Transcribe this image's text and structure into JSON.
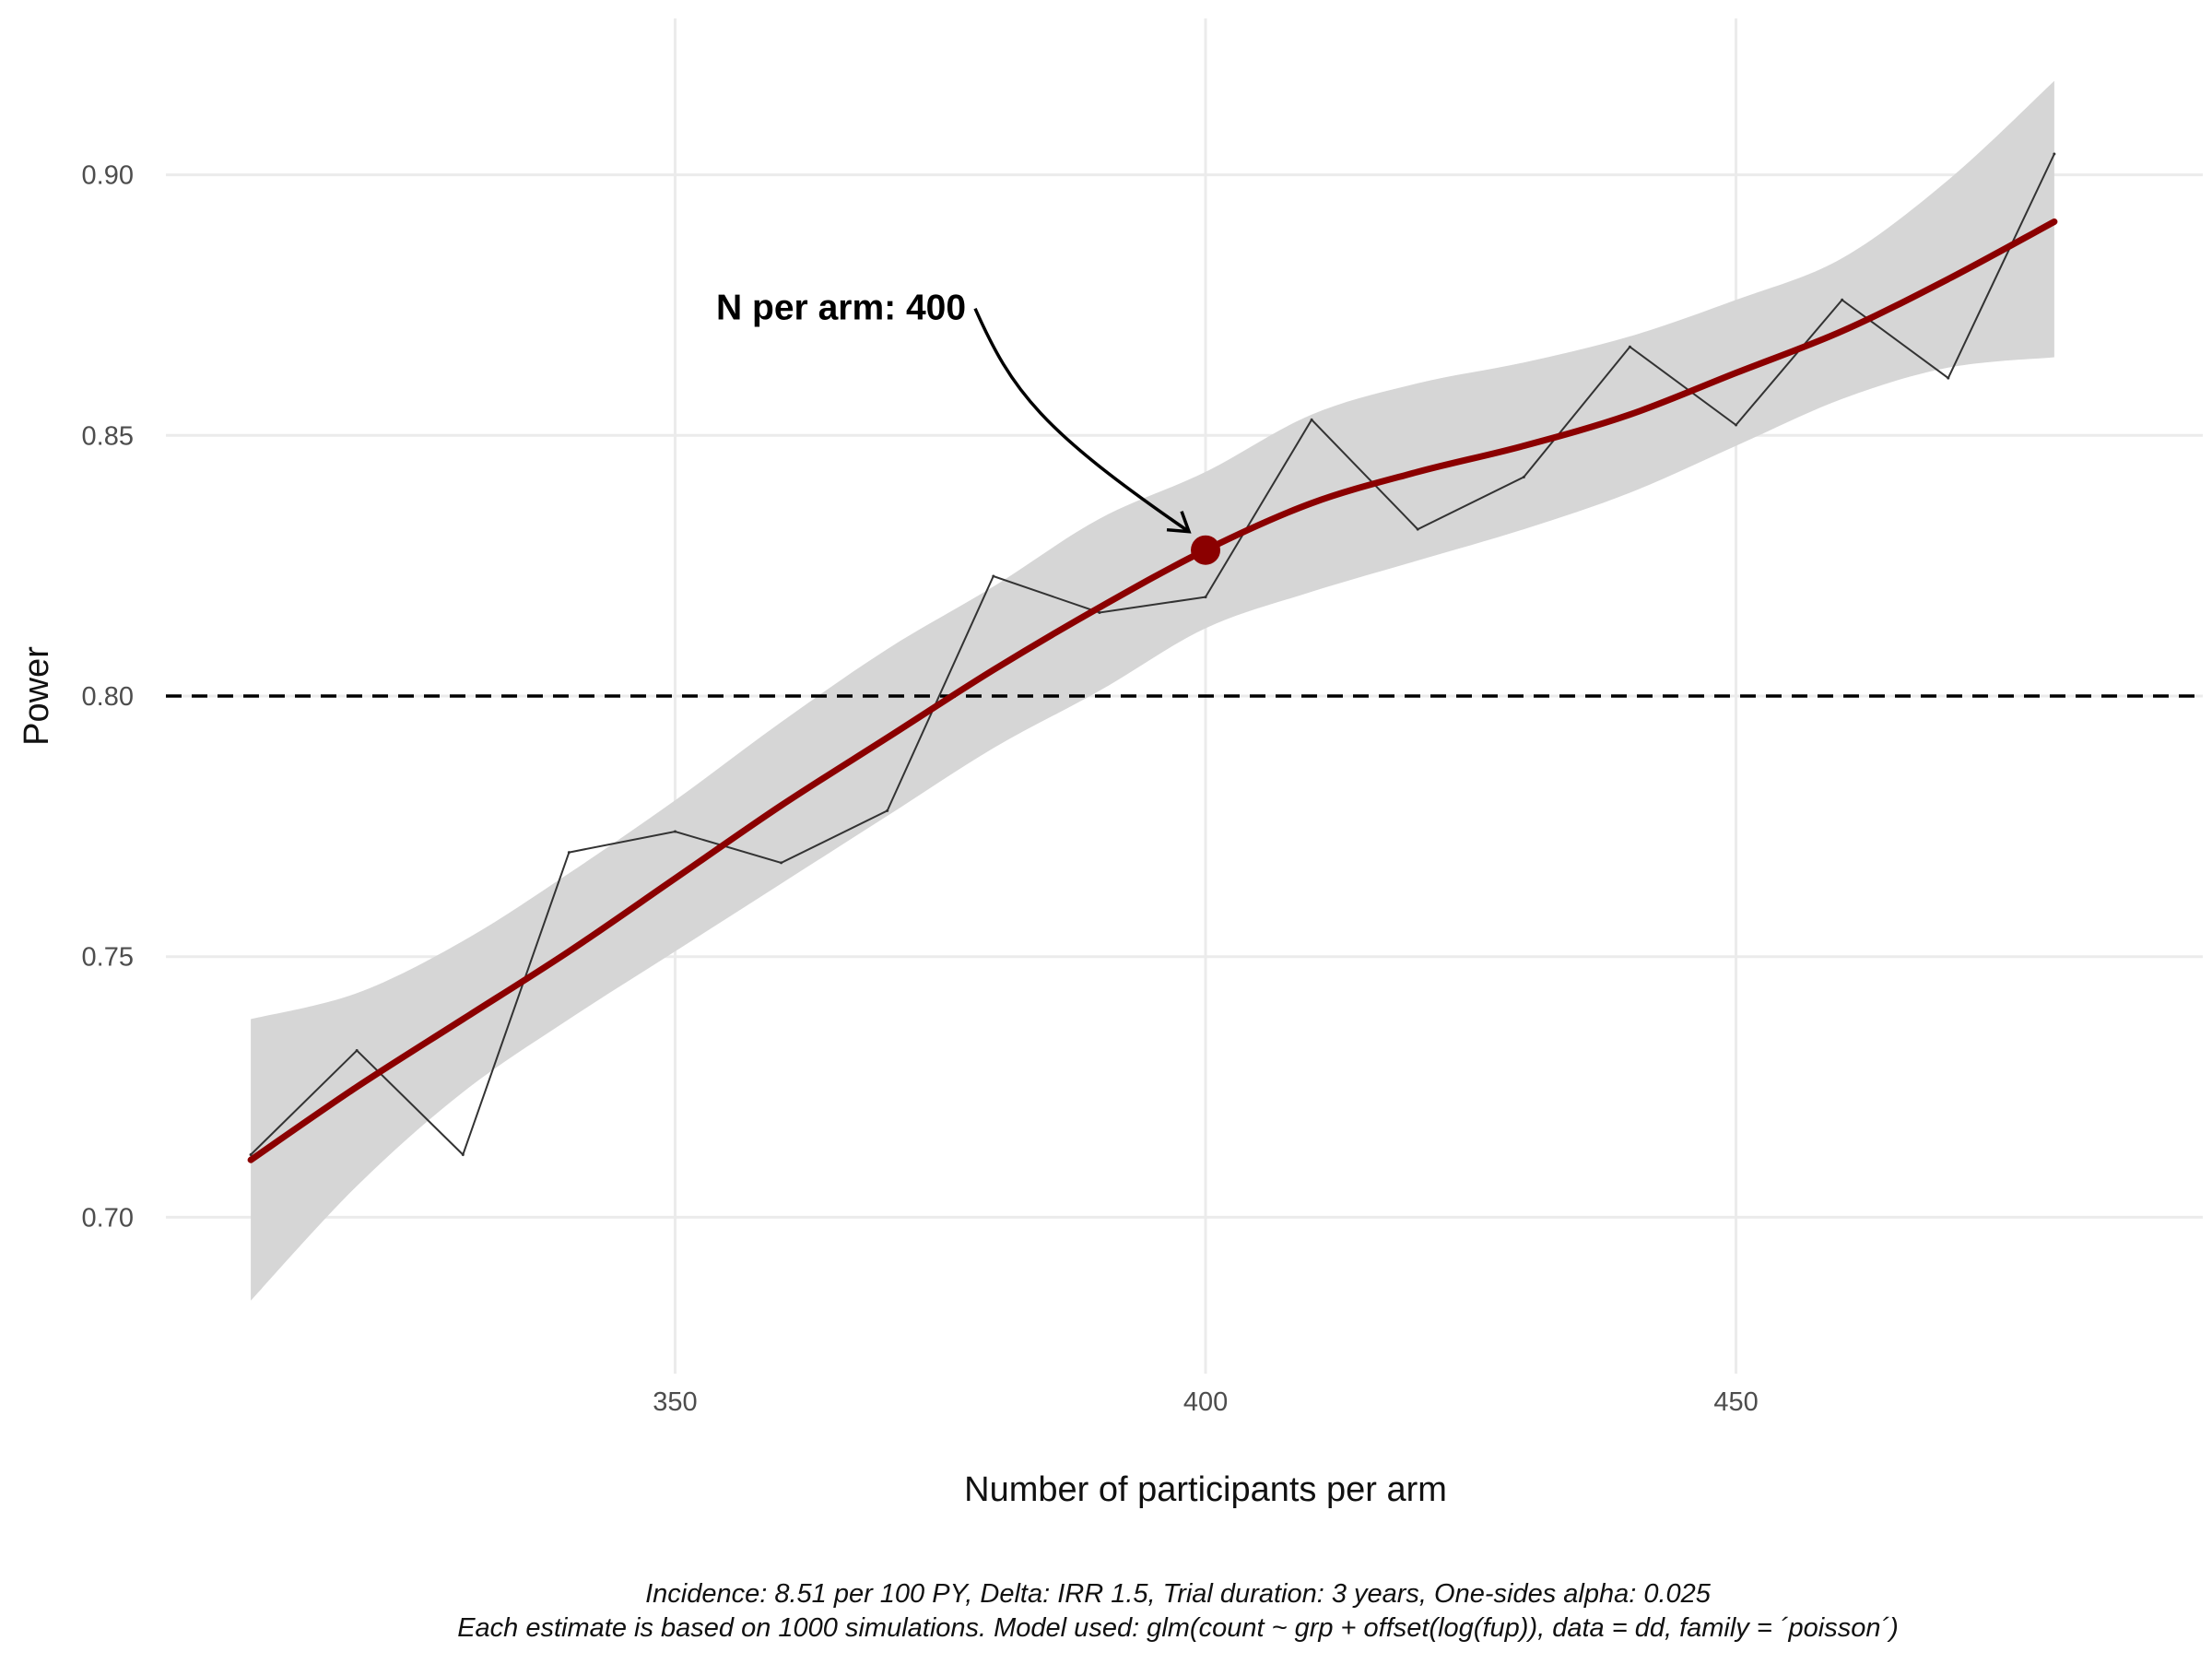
{
  "chart_data": {
    "type": "line",
    "x": [
      310,
      320,
      330,
      340,
      350,
      360,
      370,
      380,
      390,
      400,
      410,
      420,
      430,
      440,
      450,
      460,
      470,
      480
    ],
    "series": [
      {
        "kind": "observed",
        "values": [
          0.712,
          0.732,
          0.712,
          0.77,
          0.774,
          0.768,
          0.778,
          0.823,
          0.816,
          0.819,
          0.853,
          0.832,
          0.842,
          0.867,
          0.852,
          0.876,
          0.861,
          0.904
        ]
      },
      {
        "kind": "smooth",
        "values": [
          0.711,
          0.725,
          0.738,
          0.751,
          0.765,
          0.779,
          0.792,
          0.805,
          0.817,
          0.828,
          0.837,
          0.843,
          0.848,
          0.854,
          0.862,
          0.87,
          0.88,
          0.891
        ],
        "ci_lower": [
          0.684,
          0.706,
          0.724,
          0.738,
          0.751,
          0.764,
          0.777,
          0.79,
          0.801,
          0.813,
          0.82,
          0.826,
          0.832,
          0.839,
          0.848,
          0.857,
          0.863,
          0.865
        ],
        "ci_upper": [
          0.738,
          0.743,
          0.753,
          0.766,
          0.78,
          0.795,
          0.809,
          0.821,
          0.834,
          0.843,
          0.854,
          0.86,
          0.864,
          0.869,
          0.876,
          0.884,
          0.899,
          0.918
        ]
      }
    ],
    "reference_line": {
      "y": 0.8,
      "style": "dashed"
    },
    "highlight_point": {
      "x": 400,
      "y": 0.828,
      "label": "N per arm: 400"
    },
    "xlim": [
      302,
      494
    ],
    "ylim": [
      0.67,
      0.93
    ],
    "xticks": [
      350,
      400,
      450
    ],
    "xtick_labels": [
      "350",
      "400",
      "450"
    ],
    "yticks": [
      0.7,
      0.75,
      0.8,
      0.85,
      0.9
    ],
    "ytick_labels": [
      "0.70",
      "0.75",
      "0.80",
      "0.85",
      "0.90"
    ],
    "xlabel": "Number of participants per arm",
    "ylabel": "Power",
    "title": "",
    "caption_lines": [
      "Incidence: 8.51 per 100 PY, Delta: IRR 1.5, Trial duration: 3 years, One-sides alpha: 0.025",
      "Each estimate is based on 1000 simulations. Model used: glm(count ~ grp + offset(log(fup)), data = dd, family = ´poisson´)"
    ],
    "grid": true,
    "colors": {
      "smooth_line": "#8b0000",
      "ribbon": "#d6d6d6",
      "observed_line": "#333333",
      "grid": "#ebebeb",
      "reference_line": "#000000"
    }
  }
}
